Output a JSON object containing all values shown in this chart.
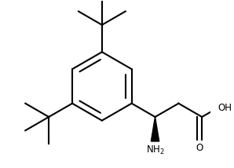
{
  "bg_color": "#ffffff",
  "line_color": "#000000",
  "line_width": 1.5,
  "font_size": 8.5,
  "ring_r": 0.38,
  "bl": 0.3
}
